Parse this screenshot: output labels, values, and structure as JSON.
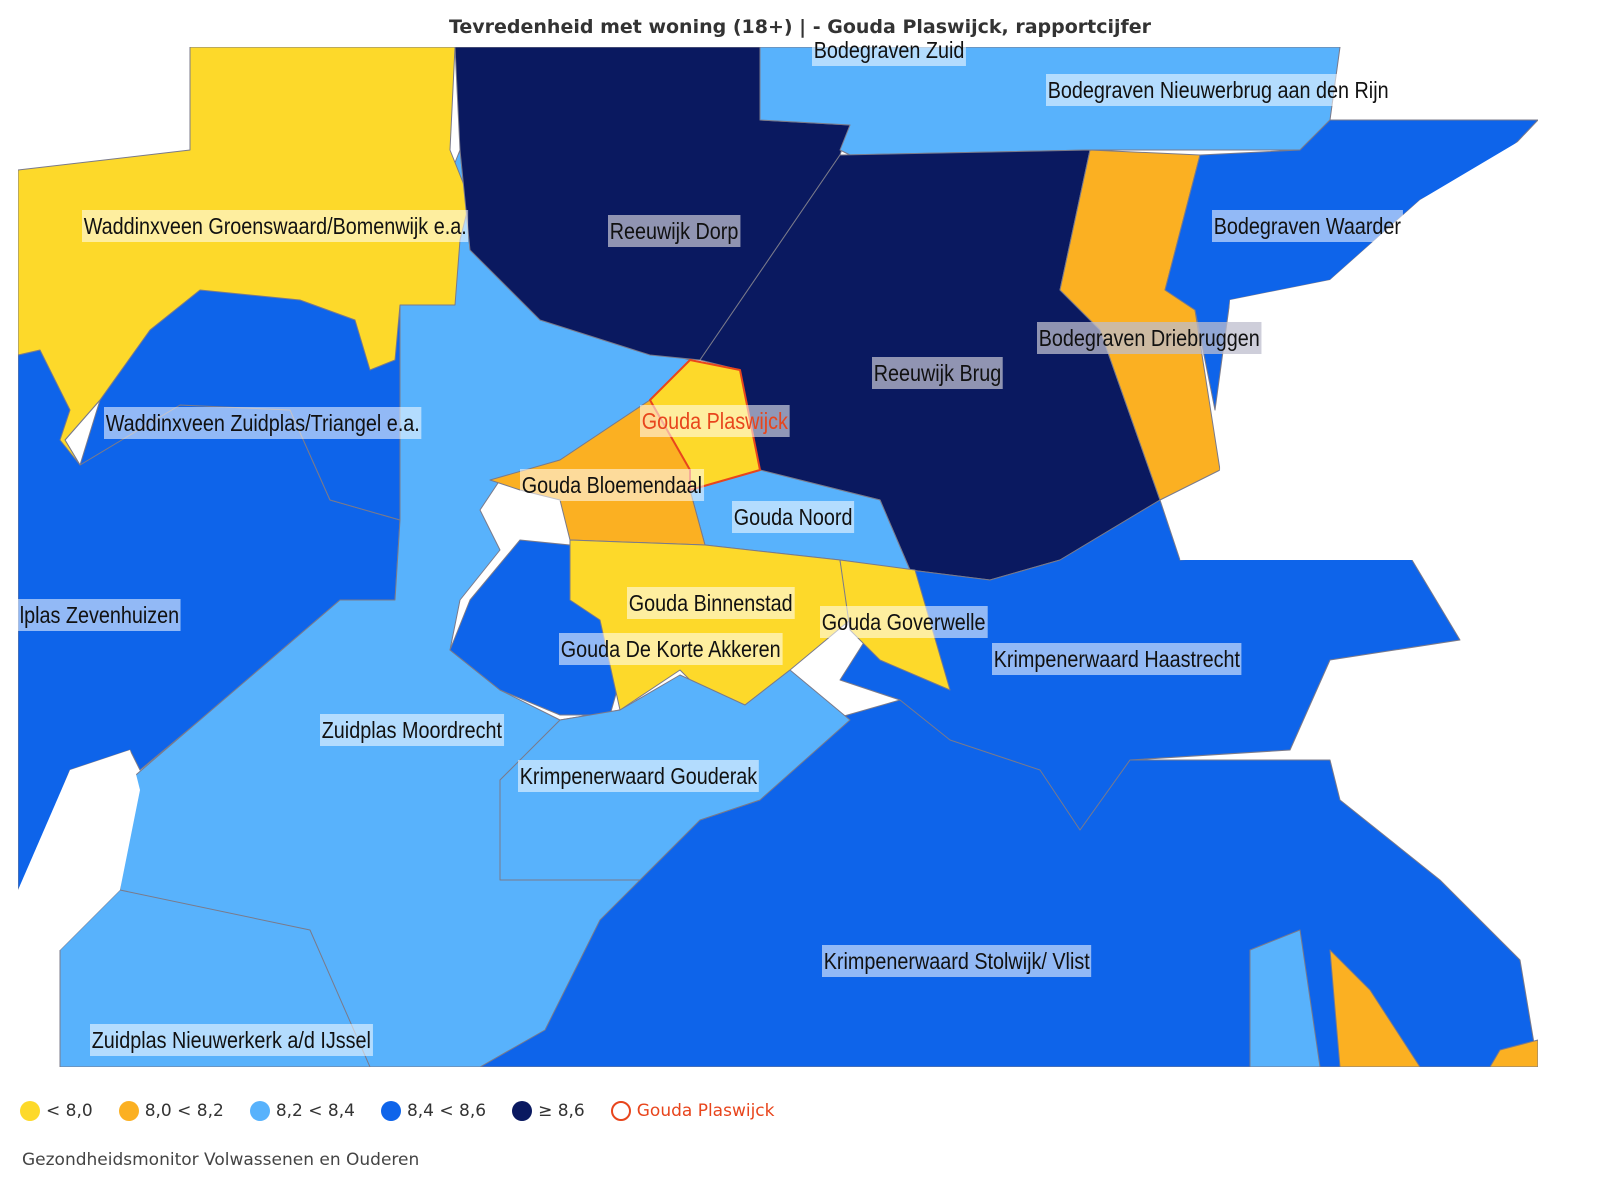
{
  "title": "Tevredenheid met woning (18+) | - Gouda Plaswijck, rapportcijfer",
  "colors": {
    "lt80": "#fdd92a",
    "r80_82": "#fbb022",
    "r82_84": "#58b2fc",
    "r84_86": "#0e64ea",
    "ge86": "#0a1960",
    "selected": "#e8451c"
  },
  "labels": {
    "bodegraven_zuid": "Bodegraven Zuid",
    "bodegraven_nieuwerbrug": "Bodegraven Nieuwerbrug aan den Rijn",
    "waddinxveen_groenswaard": "Waddinxveen Groenswaard/Bomenwijk e.a.",
    "reeuwijk_dorp": "Reeuwijk Dorp",
    "bodegraven_waarder": "Bodegraven Waarder",
    "bodegraven_driebruggen": "Bodegraven Driebruggen",
    "reeuwijk_brug": "Reeuwijk Brug",
    "waddinxveen_zuidplas": "Waddinxveen Zuidplas/Triangel e.a.",
    "gouda_plaswijck": "Gouda Plaswijck",
    "gouda_bloemendaal": "Gouda Bloemendaal",
    "gouda_noord": "Gouda Noord",
    "zuidplas_zevenhuizen": "lplas Zevenhuizen",
    "gouda_binnenstad": "Gouda Binnenstad",
    "gouda_goverwelle": "Gouda Goverwelle",
    "gouda_korte_akkeren": "Gouda De Korte Akkeren",
    "krimpenerwaard_haastrecht": "Krimpenerwaard Haastrecht",
    "zuidplas_moordrecht": "Zuidplas Moordrecht",
    "krimpenerwaard_gouderak": "Krimpenerwaard Gouderak",
    "krimpenerwaard_stolwijk": "Krimpenerwaard Stolwijk/ Vlist",
    "zuidplas_nieuwerkerk": "Zuidplas Nieuwerkerk a/d IJssel"
  },
  "legend": [
    {
      "label": "< 8,0",
      "color": "#fdd92a"
    },
    {
      "label": "8,0 < 8,2",
      "color": "#fbb022"
    },
    {
      "label": "8,2 < 8,4",
      "color": "#58b2fc"
    },
    {
      "label": "8,4 < 8,6",
      "color": "#0e64ea"
    },
    {
      "label": "≥ 8,6",
      "color": "#0a1960"
    },
    {
      "label": "Gouda Plaswijck",
      "color": "#e8451c"
    }
  ],
  "source": "Gezondheidsmonitor Volwassenen en Ouderen"
}
